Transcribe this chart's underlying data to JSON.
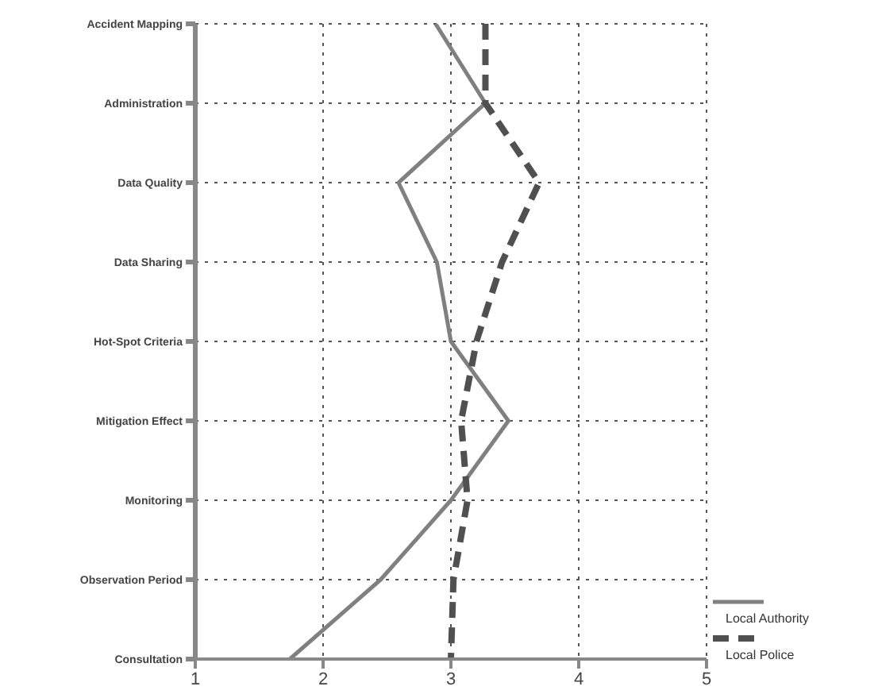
{
  "chart_data": {
    "type": "line",
    "orientation": "horizontal",
    "categories": [
      "Accident Mapping",
      "Administration",
      "Data Quality",
      "Data Sharing",
      "Hot-Spot Criteria",
      "Mitigation Effect",
      "Monitoring",
      "Observation Period",
      "Consultation"
    ],
    "series": [
      {
        "name": "Local Authority",
        "color": "#808080",
        "line_style": "solid",
        "values": [
          2.88,
          3.27,
          2.59,
          2.89,
          3.0,
          3.45,
          3.0,
          2.45,
          1.74
        ]
      },
      {
        "name": "Local Police",
        "color": "#505050",
        "line_style": "dashed",
        "values": [
          3.27,
          3.27,
          3.69,
          3.4,
          3.2,
          3.08,
          3.13,
          3.02,
          3.0
        ]
      }
    ],
    "xlim": [
      1,
      5
    ],
    "xticks": [
      1,
      2,
      3,
      4,
      5
    ],
    "grid": true,
    "legend": "bottom right",
    "marker": "none"
  }
}
